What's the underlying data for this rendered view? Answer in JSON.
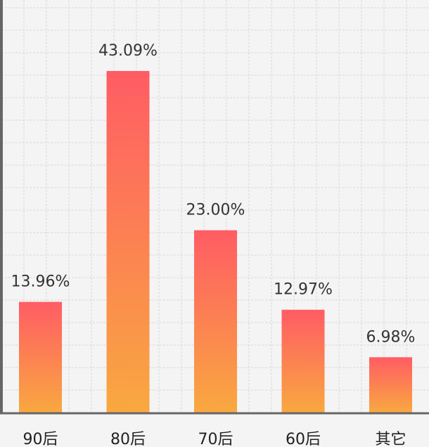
{
  "chart_data": {
    "type": "bar",
    "categories": [
      "90后",
      "80后",
      "70后",
      "60后",
      "其它"
    ],
    "values": [
      13.96,
      43.09,
      23.0,
      12.97,
      6.98
    ],
    "value_labels": [
      "13.96%",
      "43.09%",
      "23.00%",
      "12.97%",
      "6.98%"
    ],
    "ylim": [
      0,
      50
    ],
    "grid": true,
    "legend": "none",
    "title": "",
    "xlabel": "",
    "ylabel": "",
    "colors": {
      "bar_top": "#ff5c64",
      "bar_bottom": "#f9a840",
      "axis": "#666666",
      "grid": "#d8d8d8",
      "background": "#f4f4f4"
    }
  }
}
